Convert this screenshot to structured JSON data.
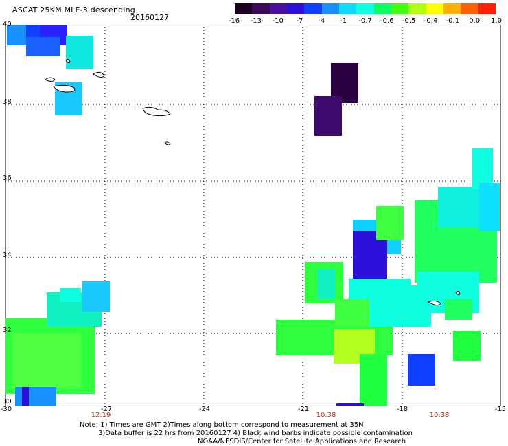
{
  "header": {
    "title": "ASCAT 25KM MLE-3 descending",
    "date": "20160127"
  },
  "colorbar": {
    "labels": [
      "-16",
      "-13",
      "-10",
      "-7",
      "-4",
      "-1",
      "-0.7",
      "-0.6",
      "-0.5",
      "-0.4",
      "-0.1",
      "0.0",
      "1.0"
    ],
    "colors": [
      "#1a0020",
      "#3c0a5c",
      "#4a10a0",
      "#2a10d8",
      "#1040ff",
      "#1890ff",
      "#10d8ff",
      "#10ffe0",
      "#10ff60",
      "#40ff10",
      "#b0ff10",
      "#ffff00",
      "#ffb000",
      "#ff6000",
      "#ff2000"
    ]
  },
  "axes": {
    "lat_labels": [
      "40",
      "38",
      "36",
      "34",
      "32",
      "30"
    ],
    "lon_labels": [
      "-30",
      "-27",
      "-24",
      "-21",
      "-18",
      "-15"
    ],
    "time_labels": [
      "12:19",
      "10:38",
      "10:38"
    ]
  },
  "notes": {
    "line1": "Note: 1) Times are GMT 2)Times along bottom correspond to measurement at 35N",
    "line2": "3)Data buffer is 22 hrs from 20160127 4) Black wind barbs indicate possible contamination",
    "line3": "NOAA/NESDIS/Center for Satellite Applications and Research"
  }
}
